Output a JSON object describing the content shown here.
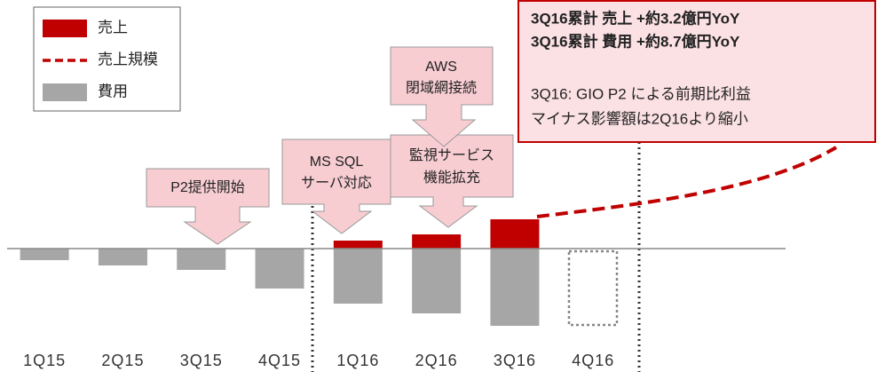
{
  "chart_data": {
    "type": "bar",
    "categories": [
      "1Q15",
      "2Q15",
      "3Q15",
      "4Q15",
      "1Q16",
      "2Q16",
      "3Q16",
      "4Q16"
    ],
    "series": [
      {
        "name": "売上",
        "color": "#c00000",
        "values": [
          null,
          null,
          null,
          null,
          9,
          16,
          33,
          null
        ]
      },
      {
        "name": "費用",
        "color": "#a6a6a6",
        "values": [
          -13,
          -19,
          -24,
          -45,
          -62,
          -73,
          -87,
          null
        ]
      }
    ],
    "line_legend": {
      "name": "売上規模",
      "color": "#c00000"
    },
    "ylim": [
      -100,
      100
    ],
    "annotations": [
      {
        "lines": [
          "P2提供開始"
        ]
      },
      {
        "lines": [
          "MS SQL",
          "サーバ対応"
        ]
      },
      {
        "lines": [
          "監視サービス",
          "機能拡充"
        ]
      },
      {
        "lines": [
          "AWS",
          "閉域網接続"
        ]
      }
    ],
    "summary": {
      "bold_lines": [
        "3Q16累計 売上 +約3.2億円YoY",
        "3Q16累計 費用 +約8.7億円YoY"
      ],
      "lines": [
        "3Q16: GIO P2 による前期比利益",
        "マイナス影響額は2Q16より縮小"
      ]
    }
  }
}
